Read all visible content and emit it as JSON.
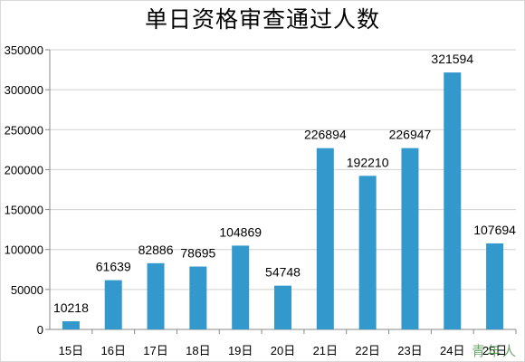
{
  "chart_data": {
    "type": "bar",
    "title": "单日资格审查通过人数",
    "xlabel": "",
    "ylabel": "",
    "categories": [
      "15日",
      "16日",
      "17日",
      "18日",
      "19日",
      "20日",
      "21日",
      "22日",
      "23日",
      "24日",
      "25日"
    ],
    "values": [
      10218,
      61639,
      82886,
      78695,
      104869,
      54748,
      226894,
      192210,
      226947,
      321594,
      107694
    ],
    "ylim": [
      0,
      350000
    ],
    "yticks": [
      0,
      50000,
      100000,
      150000,
      200000,
      250000,
      300000,
      350000
    ],
    "grid": true,
    "legend": "none",
    "bar_color": "#3399cc",
    "grid_color": "#d0d0d0",
    "data_labels": true
  },
  "watermark": "青年人"
}
